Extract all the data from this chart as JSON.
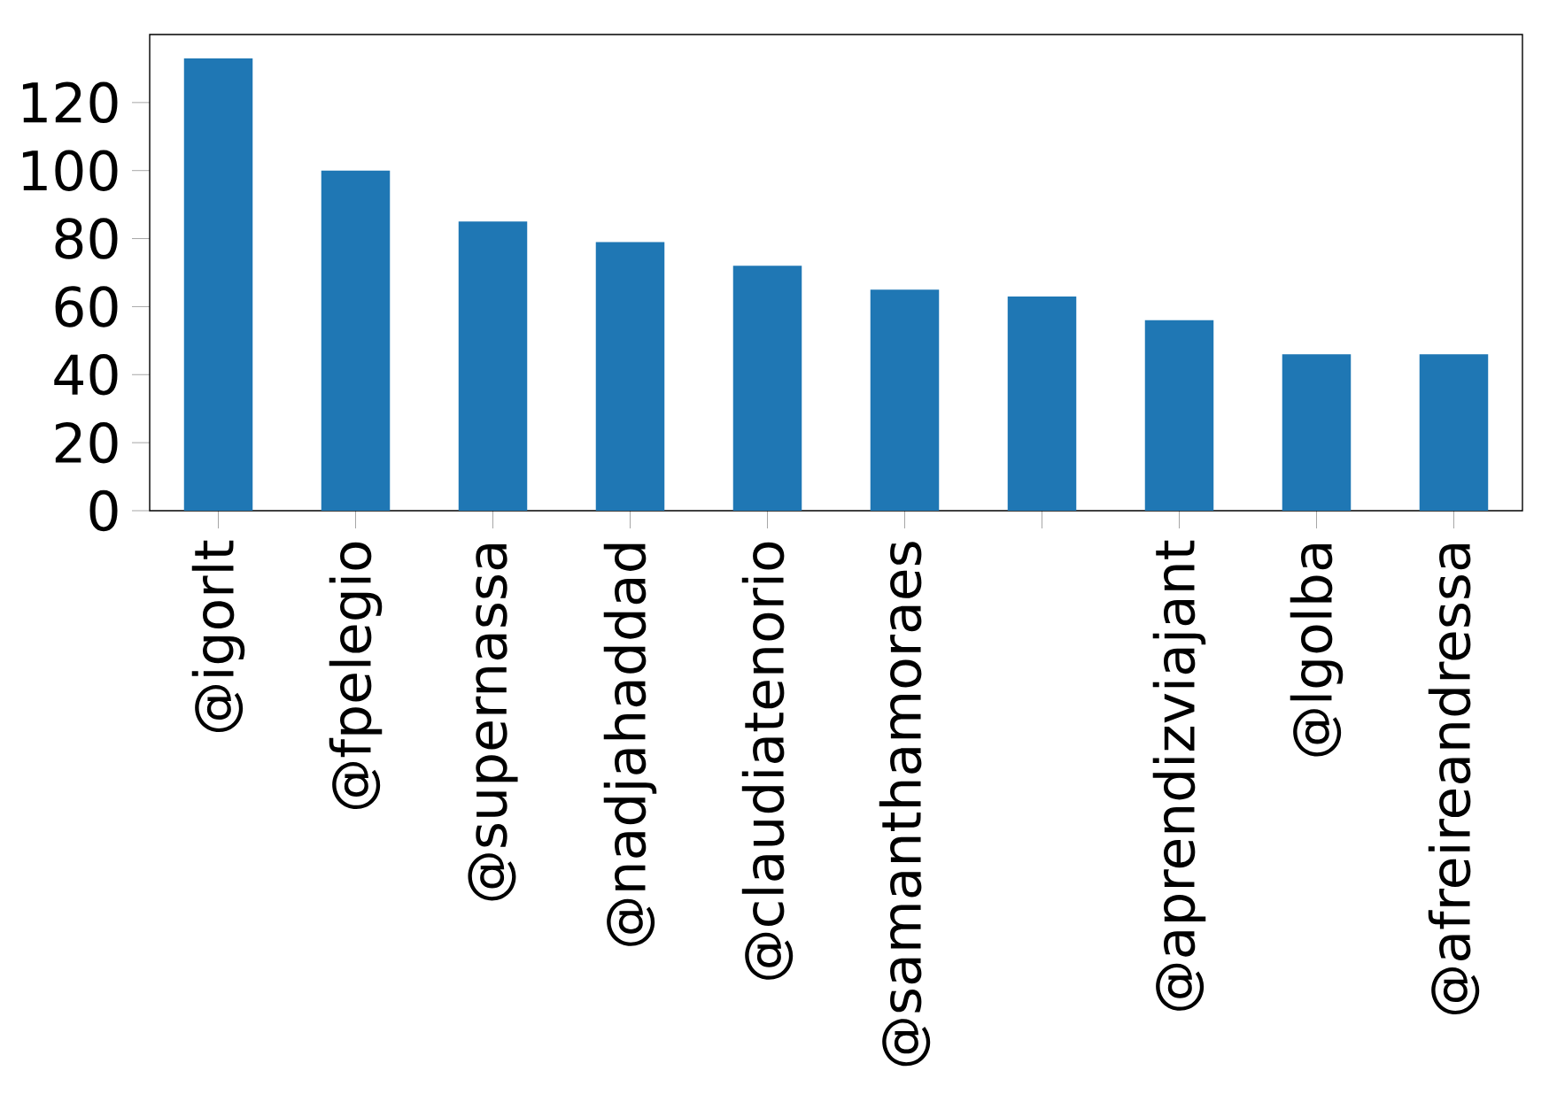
{
  "chart_data": {
    "type": "bar",
    "categories": [
      "@igorlt",
      "@fpelegio",
      "@supernassa",
      "@nadjahaddad",
      "@claudiatenorio",
      "@samanthamoraes",
      null,
      "@aprendizviajant",
      "@lgolba",
      "@afreireandressa"
    ],
    "values": [
      133,
      100,
      85,
      79,
      72,
      65,
      63,
      56,
      46,
      46
    ],
    "color": "#1f77b4",
    "ylim": [
      0,
      140
    ],
    "yticks": [
      0,
      20,
      40,
      60,
      80,
      100,
      120
    ]
  }
}
